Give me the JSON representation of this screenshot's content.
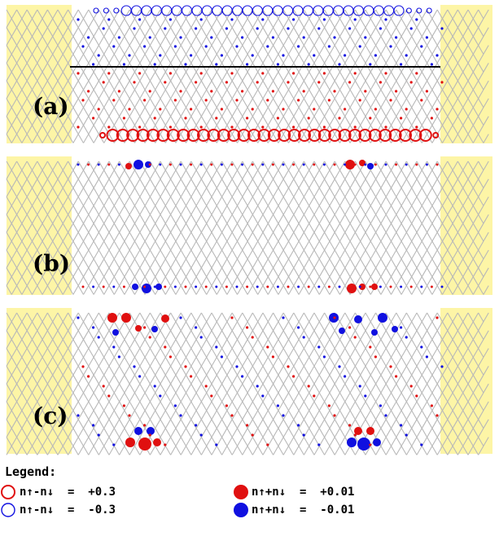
{
  "panels": [
    {
      "label": "(a)"
    },
    {
      "label": "(b)"
    },
    {
      "label": "(c)"
    }
  ],
  "legend": {
    "title": "Legend:",
    "items": [
      {
        "symbol": "open-circle",
        "color": "#e01010",
        "text": "n↑-n↓  =  +0.3"
      },
      {
        "symbol": "open-circle",
        "color": "#1010e0",
        "text": "n↑-n↓  =  -0.3"
      },
      {
        "symbol": "filled-circle",
        "color": "#e01010",
        "text": "n↑+n↓  =  +0.01"
      },
      {
        "symbol": "filled-circle",
        "color": "#1010e0",
        "text": "n↑+n↓  =  -0.01"
      }
    ]
  },
  "colors": {
    "lead": "#fdf5a6",
    "lattice": "#b8b8b8",
    "positive": "#e01010",
    "negative": "#1010e0"
  }
}
